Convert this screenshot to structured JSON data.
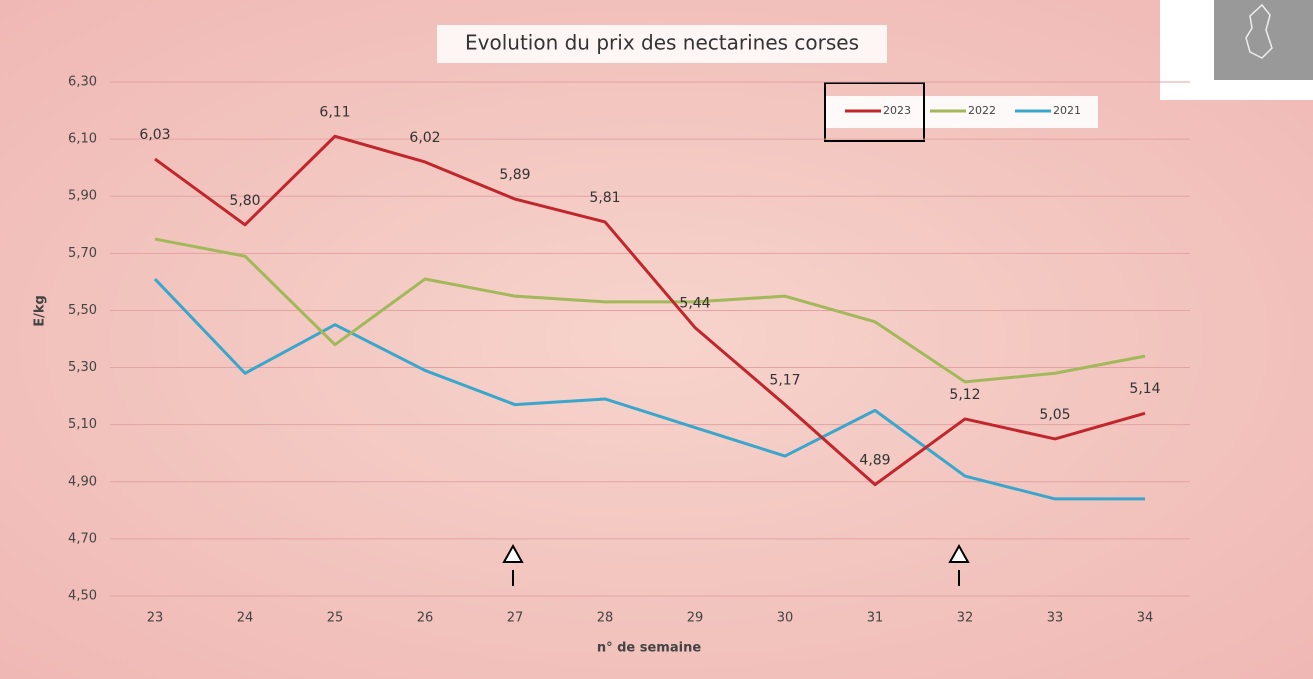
{
  "chart_data": {
    "type": "line",
    "title": "Evolution du prix des nectarines corses",
    "y_label": "E/kg",
    "x_label": "n° de semaine",
    "categories": [
      "23",
      "24",
      "25",
      "26",
      "27",
      "28",
      "29",
      "30",
      "31",
      "32",
      "33",
      "34"
    ],
    "series": [
      {
        "name": "2023",
        "color": "#c0262c",
        "values": [
          6.03,
          5.8,
          6.11,
          6.02,
          5.89,
          5.81,
          5.44,
          5.17,
          4.89,
          5.12,
          5.05,
          5.14
        ],
        "value_labels": [
          "6,03",
          "5,80",
          "6,11",
          "6,02",
          "5,89",
          "5,81",
          "5,44",
          "5,17",
          "4,89",
          "5,12",
          "5,05",
          "5,14"
        ]
      },
      {
        "name": "2022",
        "color": "#a2b85a",
        "values": [
          5.75,
          5.69,
          5.38,
          5.61,
          5.55,
          5.53,
          5.53,
          5.55,
          5.46,
          5.25,
          5.28,
          5.34
        ]
      },
      {
        "name": "2021",
        "color": "#3aa6cc",
        "values": [
          5.61,
          5.28,
          5.45,
          5.29,
          5.17,
          5.19,
          5.09,
          4.99,
          5.15,
          4.92,
          4.84,
          4.84
        ]
      }
    ],
    "ylim": [
      4.5,
      6.3
    ],
    "yticks": [
      {
        "value": 4.5,
        "label": "4,50"
      },
      {
        "value": 4.7,
        "label": "4,70"
      },
      {
        "value": 4.9,
        "label": "4,90"
      },
      {
        "value": 5.1,
        "label": "5,10"
      },
      {
        "value": 5.3,
        "label": "5,30"
      },
      {
        "value": 5.5,
        "label": "5,50"
      },
      {
        "value": 5.7,
        "label": "5,70"
      },
      {
        "value": 5.9,
        "label": "5,90"
      },
      {
        "value": 6.1,
        "label": "6,10"
      },
      {
        "value": 6.3,
        "label": "6,30"
      }
    ],
    "grid": true
  }
}
